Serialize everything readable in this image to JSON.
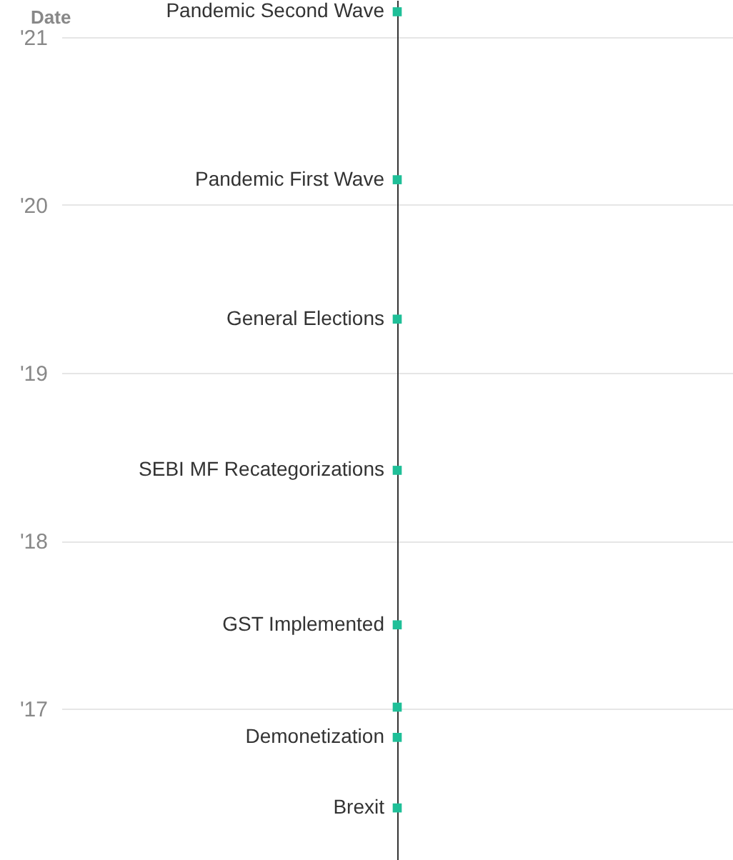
{
  "chart_data": {
    "type": "scatter",
    "ylabel": "Date",
    "categories": [
      null
    ],
    "series": [
      {
        "color": "#1fbf98",
        "values": [
          2021.15
        ],
        "value_labels": [
          "Pandemic Second Wave"
        ]
      },
      {
        "color": "#1fbf98",
        "values": [
          2020.15
        ],
        "value_labels": [
          "Pandemic First Wave"
        ]
      },
      {
        "color": "#1fbf98",
        "values": [
          2019.32
        ],
        "value_labels": [
          "General Elections"
        ]
      },
      {
        "color": "#1fbf98",
        "values": [
          2018.42
        ],
        "value_labels": [
          "SEBI MF Recategorizations"
        ]
      },
      {
        "color": "#1fbf98",
        "values": [
          2017.5
        ],
        "value_labels": [
          "GST Implemented"
        ]
      },
      {
        "color": "#1fbf98",
        "values": [
          2017.01
        ],
        "value_labels": [
          null
        ]
      },
      {
        "color": "#1fbf98",
        "values": [
          2016.83
        ],
        "value_labels": [
          "Demonetization"
        ]
      },
      {
        "color": "#1fbf98",
        "values": [
          2016.41
        ],
        "value_labels": [
          "Brexit"
        ]
      }
    ],
    "ylim": [
      2016.1,
      2021.22
    ],
    "yticks": [
      {
        "value": 2017,
        "label": "'17"
      },
      {
        "value": 2018,
        "label": "'18"
      },
      {
        "value": 2019,
        "label": "'19"
      },
      {
        "value": 2020,
        "label": "'20"
      },
      {
        "value": 2021,
        "label": "'21"
      }
    ],
    "tick_labels": "y",
    "grid": "y",
    "marker": "square"
  }
}
